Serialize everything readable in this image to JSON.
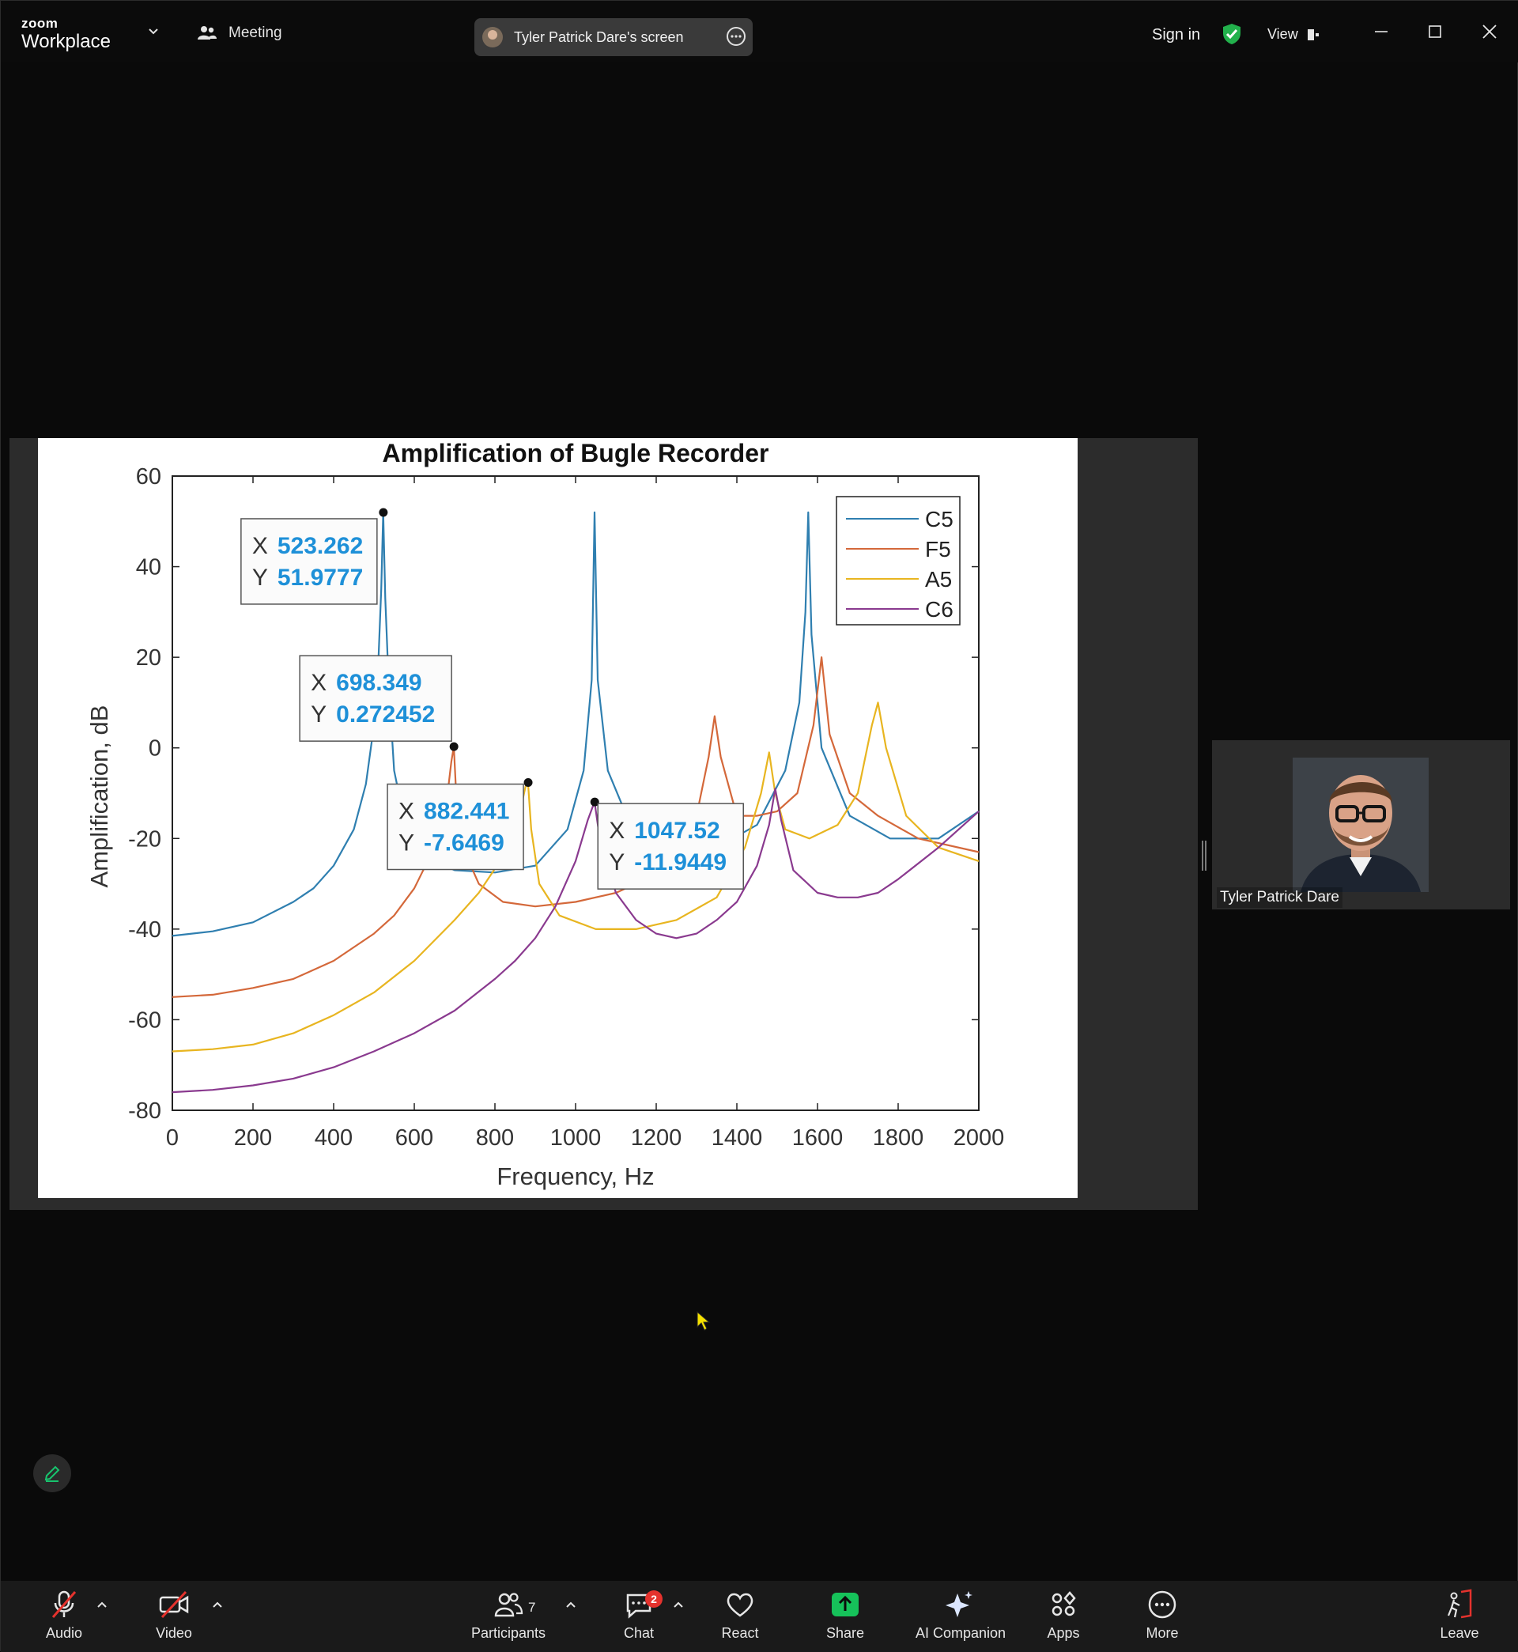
{
  "app": {
    "logo_top": "zoom",
    "logo_bottom": "Workplace",
    "meeting_label": "Meeting",
    "screen_label": "Tyler Patrick Dare's screen",
    "sign_in": "Sign in",
    "view": "View"
  },
  "participant": {
    "name": "Tyler Patrick Dare"
  },
  "toolbar": {
    "audio": "Audio",
    "video": "Video",
    "participants": "Participants",
    "participants_count": "7",
    "chat": "Chat",
    "chat_badge": "2",
    "react": "React",
    "share": "Share",
    "ai": "AI Companion",
    "apps": "Apps",
    "more": "More",
    "leave": "Leave"
  },
  "colors": {
    "share_green": "#16c25a",
    "shield_green": "#22b14c",
    "leave_red": "#e5322d",
    "badge_red": "#e5322d"
  },
  "icons": [
    "chevron-down-icon",
    "participants-icon",
    "more-icon",
    "shield-icon",
    "view-icon",
    "minimize-icon",
    "maximize-icon",
    "close-icon",
    "mic-muted-icon",
    "video-off-icon",
    "chat-icon",
    "heart-icon",
    "share-up-icon",
    "sparkle-icon",
    "apps-icon",
    "ellipsis-icon",
    "leave-icon",
    "pencil-icon"
  ],
  "chart_data": {
    "type": "line",
    "title": "Amplification of Bugle Recorder",
    "xlabel": "Frequency, Hz",
    "ylabel": "Amplification, dB",
    "xlim": [
      0,
      2000
    ],
    "ylim": [
      -80,
      60
    ],
    "xticks": [
      "0",
      "200",
      "400",
      "600",
      "800",
      "1000",
      "1200",
      "1400",
      "1600",
      "1800",
      "2000"
    ],
    "yticks": [
      "60",
      "40",
      "20",
      "0",
      "-20",
      "-40",
      "-60",
      "-80"
    ],
    "legend": "top-right",
    "series": [
      {
        "name": "C5",
        "color": "#2f7fb0",
        "x": [
          0,
          100,
          200,
          300,
          350,
          400,
          450,
          480,
          500,
          510,
          518,
          523,
          528,
          536,
          550,
          580,
          620,
          700,
          800,
          900,
          980,
          1020,
          1040,
          1047,
          1055,
          1080,
          1150,
          1250,
          1350,
          1450,
          1520,
          1555,
          1570,
          1577,
          1585,
          1610,
          1680,
          1780,
          1900,
          2000
        ],
        "y": [
          -41.5,
          -40.5,
          -38.5,
          -34,
          -31,
          -26,
          -18,
          -8,
          5,
          17,
          35,
          52,
          33,
          15,
          -5,
          -18,
          -24,
          -27,
          -27.5,
          -26,
          -18,
          -5,
          15,
          52,
          15,
          -5,
          -20,
          -22,
          -22,
          -17,
          -5,
          10,
          30,
          52,
          25,
          0,
          -15,
          -20,
          -20,
          -14
        ]
      },
      {
        "name": "F5",
        "color": "#d4683a",
        "x": [
          0,
          100,
          200,
          300,
          400,
          500,
          550,
          600,
          650,
          680,
          692,
          698,
          705,
          720,
          760,
          820,
          900,
          1000,
          1100,
          1200,
          1300,
          1330,
          1345,
          1360,
          1400,
          1450,
          1500,
          1550,
          1590,
          1610,
          1630,
          1680,
          1750,
          1850,
          2000
        ],
        "y": [
          -55,
          -54.5,
          -53,
          -51,
          -47,
          -41,
          -37,
          -31,
          -22,
          -12,
          -3,
          0.3,
          -12,
          -22,
          -30,
          -34,
          -35,
          -34,
          -32,
          -28,
          -15,
          -2,
          7,
          -2,
          -15,
          -15,
          -14,
          -10,
          5,
          20,
          3,
          -10,
          -15,
          -20,
          -23
        ]
      },
      {
        "name": "A5",
        "color": "#e8b520",
        "x": [
          0,
          100,
          200,
          300,
          400,
          500,
          600,
          700,
          760,
          820,
          860,
          876,
          882,
          890,
          910,
          960,
          1050,
          1150,
          1250,
          1350,
          1420,
          1460,
          1480,
          1495,
          1520,
          1580,
          1650,
          1700,
          1735,
          1750,
          1770,
          1820,
          1900,
          2000
        ],
        "y": [
          -67,
          -66.5,
          -65.5,
          -63,
          -59,
          -54,
          -47,
          -38,
          -32,
          -24,
          -15,
          -8.5,
          -7.6,
          -18,
          -30,
          -37,
          -40,
          -40,
          -38,
          -33,
          -22,
          -10,
          -1,
          -10,
          -18,
          -20,
          -17,
          -10,
          5,
          10,
          0,
          -15,
          -22,
          -25
        ]
      },
      {
        "name": "C6",
        "color": "#8a3a8f",
        "x": [
          0,
          100,
          200,
          300,
          400,
          500,
          600,
          700,
          800,
          850,
          900,
          950,
          1000,
          1030,
          1047,
          1060,
          1100,
          1150,
          1200,
          1250,
          1300,
          1350,
          1400,
          1450,
          1480,
          1495,
          1510,
          1540,
          1600,
          1650,
          1700,
          1750,
          1800,
          1900,
          2000
        ],
        "y": [
          -76,
          -75.5,
          -74.5,
          -73,
          -70.5,
          -67,
          -63,
          -58,
          -51,
          -47,
          -42,
          -35,
          -25,
          -16,
          -11.9,
          -20,
          -32,
          -38,
          -41,
          -42,
          -41,
          -38,
          -34,
          -26,
          -17,
          -9,
          -16,
          -27,
          -32,
          -33,
          -33,
          -32,
          -29,
          -22,
          -14
        ]
      }
    ],
    "datatips": [
      {
        "x_label": "X",
        "x": "523.262",
        "y_label": "Y",
        "y": "51.9777"
      },
      {
        "x_label": "X",
        "x": "698.349",
        "y_label": "Y",
        "y": "0.272452"
      },
      {
        "x_label": "X",
        "x": "882.441",
        "y_label": "Y",
        "y": "-7.6469"
      },
      {
        "x_label": "X",
        "x": "1047.52",
        "y_label": "Y",
        "y": "-11.9449"
      }
    ]
  }
}
